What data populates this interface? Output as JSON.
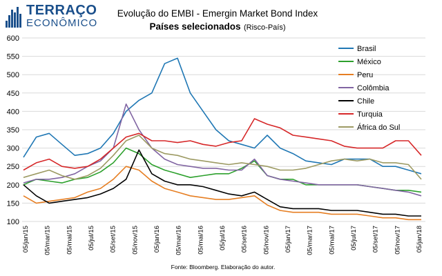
{
  "brand": {
    "line1": "TERRAÇO",
    "line2": "ECONÔMICO"
  },
  "chart_data": {
    "type": "line",
    "title": "Evolução do EMBI - Emergin Market Bond Index",
    "subtitle_main": "Países selecionados",
    "subtitle_paren": "(Risco-País)",
    "source": "Fonte: Bloomberg. Elaboração do autor.",
    "xlabel": "",
    "ylabel": "",
    "ylim": [
      100,
      600
    ],
    "yticks": [
      100,
      150,
      200,
      250,
      300,
      350,
      400,
      450,
      500,
      550,
      600
    ],
    "grid": "horizontal",
    "legend_position": "top-right",
    "x_ticks": [
      "05/jan/15",
      "05/mar/15",
      "05/mai/15",
      "05/jul/15",
      "05/set/15",
      "05/nov/15",
      "05/jan/16",
      "05/mar/16",
      "05/mai/16",
      "05/jul/16",
      "05/set/16",
      "05/nov/16",
      "05/jan/17",
      "05/mar/17",
      "05/mai/17",
      "05/jul/17",
      "05/set/17",
      "05/nov/17",
      "05/jan/18"
    ],
    "series": [
      {
        "name": "Brasil",
        "color": "#1f77b4",
        "values": [
          275,
          330,
          340,
          310,
          280,
          285,
          300,
          340,
          400,
          430,
          450,
          530,
          545,
          450,
          400,
          350,
          320,
          310,
          300,
          335,
          300,
          285,
          265,
          260,
          255,
          270,
          270,
          270,
          250,
          250,
          240,
          230
        ]
      },
      {
        "name": "México",
        "color": "#2ca02c",
        "values": [
          200,
          215,
          210,
          205,
          215,
          220,
          235,
          260,
          300,
          285,
          255,
          240,
          230,
          220,
          225,
          230,
          230,
          245,
          265,
          225,
          215,
          215,
          200,
          200,
          200,
          200,
          200,
          195,
          190,
          185,
          185,
          180
        ]
      },
      {
        "name": "Peru",
        "color": "#e67e22",
        "values": [
          170,
          150,
          155,
          160,
          165,
          180,
          190,
          215,
          250,
          240,
          210,
          190,
          180,
          170,
          165,
          160,
          160,
          165,
          170,
          145,
          130,
          125,
          125,
          125,
          120,
          120,
          120,
          115,
          110,
          110,
          105,
          105
        ]
      },
      {
        "name": "Colômbia",
        "color": "#8064a2",
        "values": [
          205,
          215,
          215,
          220,
          230,
          250,
          265,
          300,
          420,
          350,
          300,
          270,
          255,
          250,
          245,
          245,
          240,
          240,
          270,
          225,
          215,
          210,
          205,
          200,
          200,
          200,
          200,
          195,
          190,
          185,
          180,
          170
        ]
      },
      {
        "name": "Chile",
        "color": "#000000",
        "values": [
          200,
          170,
          150,
          155,
          160,
          165,
          175,
          190,
          215,
          295,
          230,
          210,
          200,
          200,
          195,
          185,
          175,
          170,
          180,
          160,
          140,
          135,
          135,
          135,
          130,
          130,
          130,
          125,
          120,
          120,
          115,
          115
        ]
      },
      {
        "name": "Turquia",
        "color": "#d62728",
        "values": [
          240,
          260,
          270,
          250,
          245,
          250,
          270,
          300,
          330,
          340,
          320,
          320,
          315,
          320,
          310,
          305,
          315,
          320,
          380,
          365,
          355,
          335,
          330,
          325,
          320,
          305,
          300,
          300,
          300,
          320,
          320,
          280
        ]
      },
      {
        "name": "África do Sul",
        "color": "#9c9a62",
        "values": [
          220,
          230,
          240,
          225,
          215,
          225,
          245,
          280,
          320,
          335,
          300,
          285,
          280,
          270,
          265,
          260,
          255,
          260,
          255,
          250,
          240,
          240,
          245,
          255,
          265,
          270,
          265,
          270,
          260,
          260,
          255,
          215
        ]
      }
    ]
  }
}
